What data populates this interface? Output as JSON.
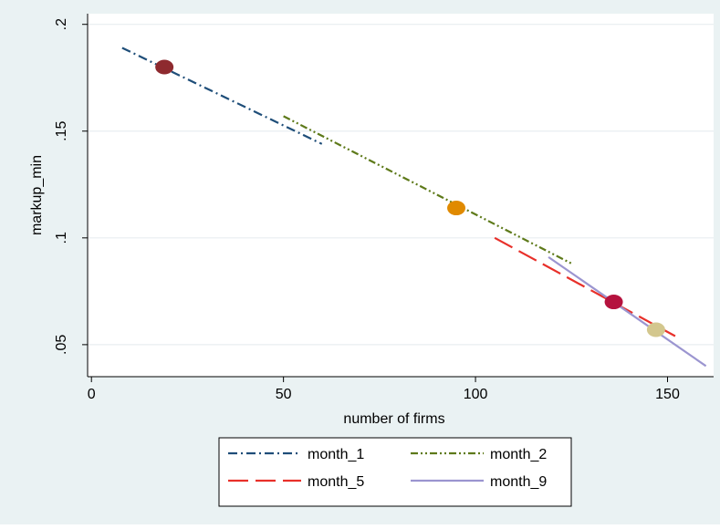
{
  "chart_data": {
    "type": "line",
    "title": "",
    "xlabel": "number of firms",
    "ylabel": "markup_min",
    "xlim": [
      -1,
      162
    ],
    "ylim": [
      0.035,
      0.205
    ],
    "x_ticks": [
      0,
      50,
      100,
      150
    ],
    "x_tick_labels": [
      "0",
      "50",
      "100",
      "150"
    ],
    "y_ticks": [
      0.05,
      0.1,
      0.15,
      0.2
    ],
    "y_tick_labels": [
      ".05",
      ".1",
      ".15",
      ".2"
    ],
    "grid": "horizontal",
    "legend_position": "bottom",
    "series": [
      {
        "name": "month_1",
        "color": "#1f4e79",
        "dash": "dash-dot",
        "x": [
          8,
          60
        ],
        "y": [
          0.189,
          0.144
        ]
      },
      {
        "name": "month_2",
        "color": "#5e7a1a",
        "dash": "dash-dot-dot",
        "x": [
          50,
          125
        ],
        "y": [
          0.157,
          0.088
        ]
      },
      {
        "name": "month_5",
        "color": "#e8302a",
        "dash": "long-dash",
        "x": [
          105,
          152
        ],
        "y": [
          0.1,
          0.054
        ]
      },
      {
        "name": "month_9",
        "color": "#9b95d0",
        "dash": "solid",
        "x": [
          119,
          160
        ],
        "y": [
          0.091,
          0.04
        ]
      }
    ],
    "markers": [
      {
        "x": 19,
        "y": 0.18,
        "color": "#8e2a2f"
      },
      {
        "x": 95,
        "y": 0.114,
        "color": "#e08a00"
      },
      {
        "x": 136,
        "y": 0.07,
        "color": "#b5123e"
      },
      {
        "x": 147,
        "y": 0.057,
        "color": "#d3c78e"
      }
    ]
  }
}
